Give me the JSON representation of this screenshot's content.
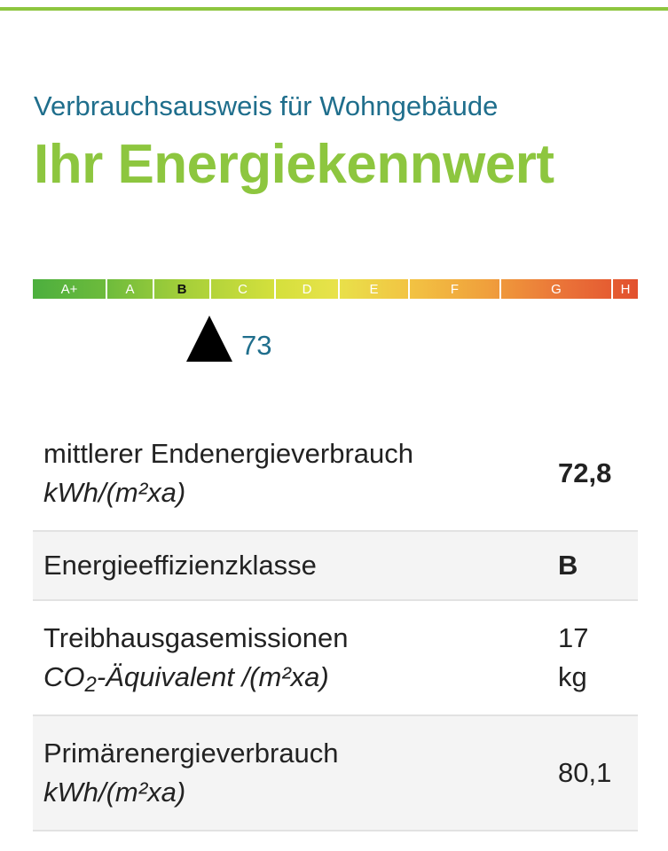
{
  "header": {
    "subtitle": "Verbrauchsausweis für Wohngebäude",
    "title": "Ihr Energiekennwert"
  },
  "scale": {
    "classes": [
      "A+",
      "A",
      "B",
      "C",
      "D",
      "E",
      "F",
      "G",
      "H"
    ],
    "active_class": "B",
    "marker_value": "73"
  },
  "rows": [
    {
      "label": "mittlerer Endenergieverbrauch",
      "sublabel": "kWh/(m²xa)",
      "value": "72,8"
    },
    {
      "label": "Energieeffizienzklasse",
      "value": "B"
    },
    {
      "label": "Treibhausgasemissionen",
      "sublabel_pre": "CO",
      "sublabel_sub": "2",
      "sublabel_post": "-Äquivalent /(m²xa)",
      "value_line1": "17",
      "value_line2": "kg"
    },
    {
      "label": "Primärenergieverbrauch",
      "sublabel": "kWh/(m²xa)",
      "value": "80,1"
    }
  ]
}
